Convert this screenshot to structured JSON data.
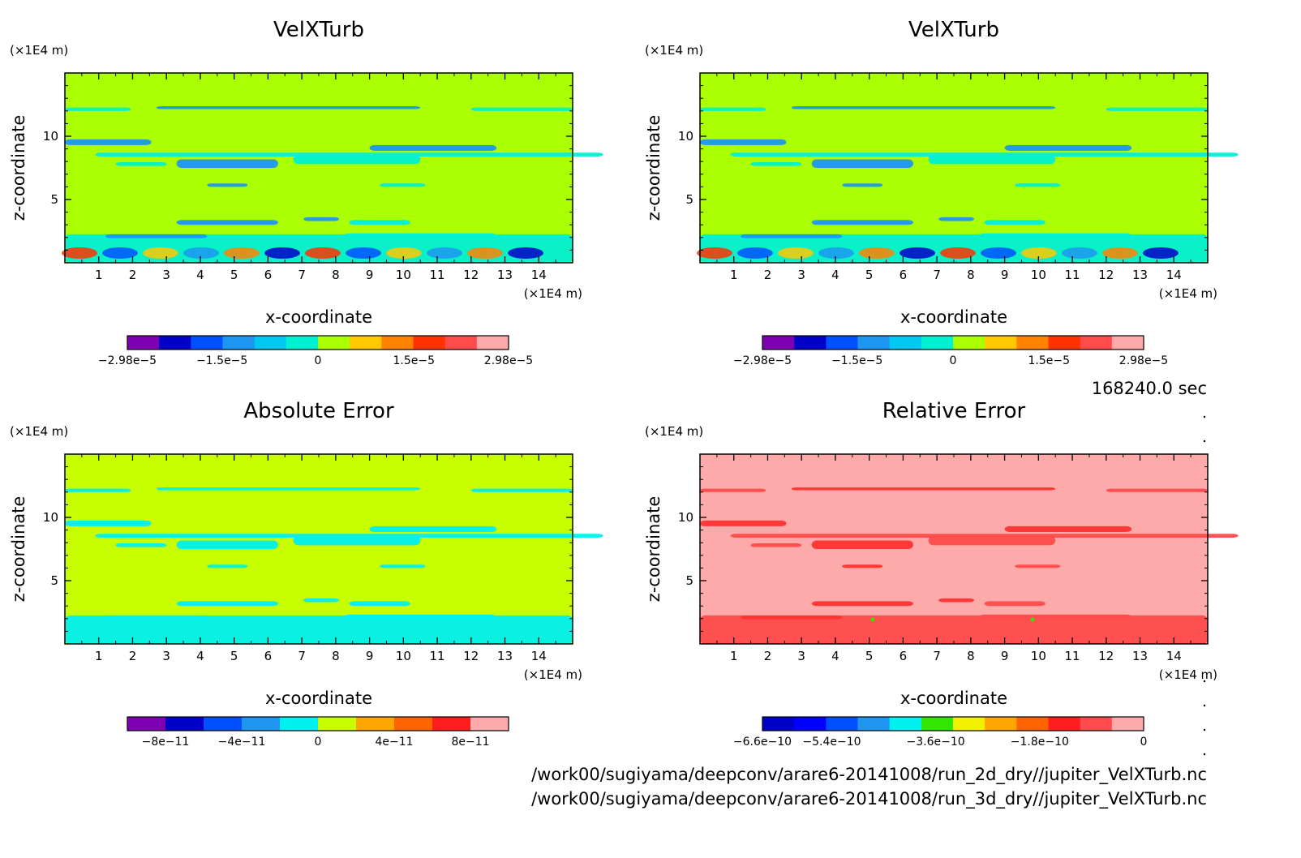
{
  "timestamp": "168240.0 sec",
  "files": [
    "/work00/sugiyama/deepconv/arare6-20141008/run_2d_dry//jupiter_VelXTurb.nc",
    "/work00/sugiyama/deepconv/arare6-20141008/run_3d_dry//jupiter_VelXTurb.nc"
  ],
  "chart_data": [
    {
      "type": "heatmap",
      "title": "VelXTurb",
      "xlabel": "x-coordinate",
      "ylabel": "z-coordinate",
      "x_unit": "(x1E4 m)",
      "y_unit": "(x1E4 m)",
      "xlim": [
        0,
        15
      ],
      "ylim": [
        0,
        15
      ],
      "x_ticks": [
        "1",
        "2",
        "3",
        "4",
        "5",
        "6",
        "7",
        "8",
        "9",
        "10",
        "11",
        "12",
        "13",
        "14"
      ],
      "y_ticks": [
        "5",
        "10"
      ],
      "background_color": "#aaff00",
      "colorbar_colors": [
        "#7f00b2",
        "#0000c8",
        "#0050ff",
        "#1e96f0",
        "#00c8f0",
        "#00f0d2",
        "#aaff00",
        "#ffc800",
        "#ff8200",
        "#ff3200",
        "#ff4b4b",
        "#ffaaaa"
      ],
      "colorbar_labels": [
        "-2.98e-5",
        "-1.5e-5",
        "0",
        "1.5e-5",
        "2.98e-5"
      ],
      "range": [
        -2.98e-05,
        2.98e-05
      ]
    },
    {
      "type": "heatmap",
      "title": "VelXTurb",
      "xlabel": "x-coordinate",
      "ylabel": "z-coordinate",
      "x_unit": "(x1E4 m)",
      "y_unit": "(x1E4 m)",
      "xlim": [
        0,
        15
      ],
      "ylim": [
        0,
        15
      ],
      "x_ticks": [
        "1",
        "2",
        "3",
        "4",
        "5",
        "6",
        "7",
        "8",
        "9",
        "10",
        "11",
        "12",
        "13",
        "14"
      ],
      "y_ticks": [
        "5",
        "10"
      ],
      "background_color": "#aaff00",
      "colorbar_colors": [
        "#7f00b2",
        "#0000c8",
        "#0050ff",
        "#1e96f0",
        "#00c8f0",
        "#00f0d2",
        "#aaff00",
        "#ffc800",
        "#ff8200",
        "#ff3200",
        "#ff4b4b",
        "#ffaaaa"
      ],
      "colorbar_labels": [
        "-2.98e-5",
        "-1.5e-5",
        "0",
        "1.5e-5",
        "2.98e-5"
      ],
      "range": [
        -2.98e-05,
        2.98e-05
      ]
    },
    {
      "type": "heatmap",
      "title": "Absolute Error",
      "xlabel": "x-coordinate",
      "ylabel": "z-coordinate",
      "x_unit": "(x1E4 m)",
      "y_unit": "(x1E4 m)",
      "xlim": [
        0,
        15
      ],
      "ylim": [
        0,
        15
      ],
      "x_ticks": [
        "1",
        "2",
        "3",
        "4",
        "5",
        "6",
        "7",
        "8",
        "9",
        "10",
        "11",
        "12",
        "13",
        "14"
      ],
      "y_ticks": [
        "5",
        "10"
      ],
      "background_color": "#c8ff00",
      "colorbar_colors": [
        "#7f00b2",
        "#0000c8",
        "#0050ff",
        "#1e96f0",
        "#00f0f0",
        "#c8ff00",
        "#ffa500",
        "#ff6400",
        "#ff1e1e",
        "#ffaaaa"
      ],
      "colorbar_labels": [
        "-8e-11",
        "-4e-11",
        "0",
        "4e-11",
        "8e-11"
      ],
      "range": [
        -1e-10,
        1e-10
      ]
    },
    {
      "type": "heatmap",
      "title": "Relative Error",
      "xlabel": "x-coordinate",
      "ylabel": "z-coordinate",
      "x_unit": "(x1E4 m)",
      "y_unit": "(x1E4 m)",
      "xlim": [
        0,
        15
      ],
      "ylim": [
        0,
        15
      ],
      "x_ticks": [
        "1",
        "2",
        "3",
        "4",
        "5",
        "6",
        "7",
        "8",
        "9",
        "10",
        "11",
        "12",
        "13",
        "14"
      ],
      "y_ticks": [
        "5",
        "10"
      ],
      "background_color": "#ffaaaa",
      "colorbar_colors": [
        "#0000c8",
        "#0000ff",
        "#0050ff",
        "#1e96f0",
        "#00f0f0",
        "#32e600",
        "#f0f000",
        "#ffa500",
        "#ff6400",
        "#ff1e1e",
        "#ff4b4b",
        "#ffaaaa"
      ],
      "colorbar_labels": [
        "-6.6e-10",
        "-5.4e-10",
        "-3.6e-10",
        "-1.8e-10",
        "0"
      ],
      "range": [
        -6.6e-10,
        0
      ]
    }
  ]
}
